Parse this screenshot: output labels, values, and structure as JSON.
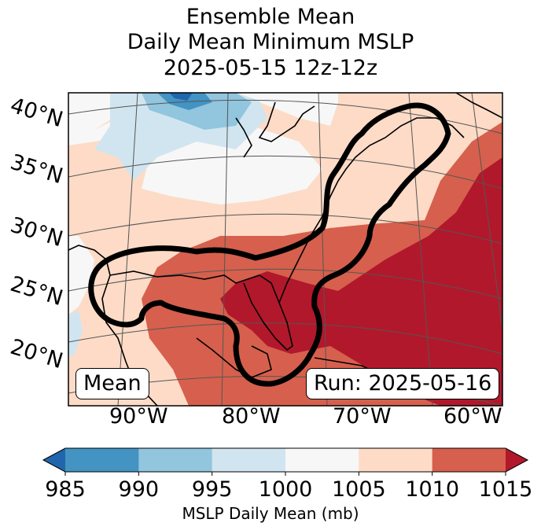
{
  "title": {
    "line1": "Ensemble Mean",
    "line2": "Daily Mean Minimum MSLP",
    "line3": "2025-05-15 12z-12z"
  },
  "map": {
    "lat_labels": [
      "40°N",
      "35°N",
      "30°N",
      "25°N",
      "20°N"
    ],
    "lon_labels": [
      "90°W",
      "80°W",
      "70°W",
      "60°W"
    ],
    "mean_label": "Mean",
    "run_label": "Run: 2025-05-16"
  },
  "colorbar": {
    "ticks": [
      "985",
      "990",
      "995",
      "1000",
      "1005",
      "1010",
      "1015"
    ],
    "label": "MSLP Daily Mean (mb)",
    "colors": [
      "#2166ac",
      "#4393c3",
      "#92c5de",
      "#d1e5f0",
      "#f7f7f7",
      "#fddbc7",
      "#d6604d",
      "#b2182b"
    ]
  }
}
